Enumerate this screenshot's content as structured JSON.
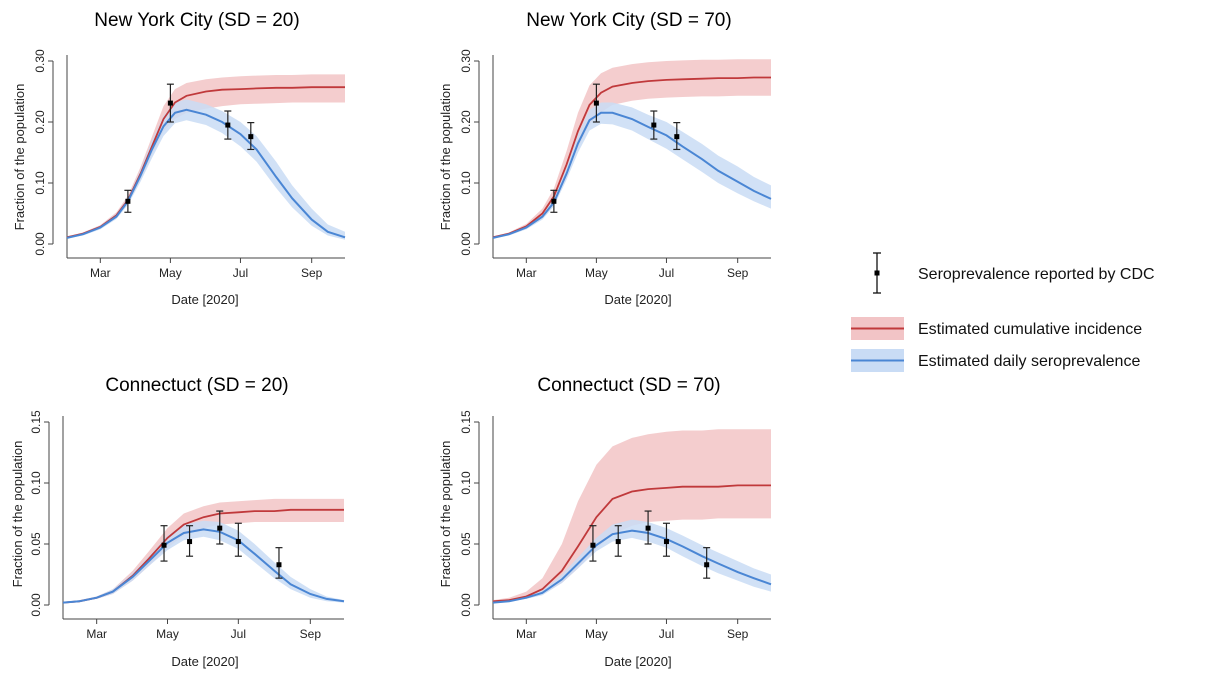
{
  "colors": {
    "cumulative_line": "#c0393b",
    "cumulative_band": "#f2c4c6",
    "daily_line": "#4a86d4",
    "daily_band": "#c9dcf5",
    "observed": "#000000"
  },
  "legend": {
    "observed": "Seroprevalence reported by CDC",
    "cumulative": "Estimated cumulative incidence",
    "daily": "Estimated daily seroprevalence"
  },
  "chart_data": [
    {
      "type": "line",
      "title": "New York City (SD = 20)",
      "xlabel": "Date [2020]",
      "ylabel": "Fraction of the population",
      "x_ticks": [
        "Mar",
        "May",
        "Jul",
        "Sep"
      ],
      "y_ticks": [
        "0.00",
        "0.10",
        "0.20",
        "0.30"
      ],
      "xlim": [
        "2020-02-01",
        "2020-09-30"
      ],
      "ylim": [
        0,
        0.3
      ],
      "observed": [
        {
          "date": "2020-03-25",
          "y": 0.07,
          "lo": 0.052,
          "hi": 0.088
        },
        {
          "date": "2020-05-01",
          "y": 0.231,
          "lo": 0.2,
          "hi": 0.262
        },
        {
          "date": "2020-06-20",
          "y": 0.195,
          "lo": 0.172,
          "hi": 0.218
        },
        {
          "date": "2020-07-10",
          "y": 0.176,
          "lo": 0.155,
          "hi": 0.199
        }
      ],
      "cumulative": {
        "dates": [
          "2020-02-01",
          "2020-02-15",
          "2020-03-01",
          "2020-03-15",
          "2020-03-25",
          "2020-04-05",
          "2020-04-15",
          "2020-04-25",
          "2020-05-05",
          "2020-05-15",
          "2020-06-01",
          "2020-06-15",
          "2020-07-01",
          "2020-07-15",
          "2020-08-01",
          "2020-08-15",
          "2020-09-01",
          "2020-09-15",
          "2020-09-30"
        ],
        "mid": [
          0.011,
          0.017,
          0.028,
          0.047,
          0.072,
          0.115,
          0.16,
          0.205,
          0.232,
          0.243,
          0.25,
          0.253,
          0.254,
          0.255,
          0.256,
          0.256,
          0.257,
          0.257,
          0.257
        ],
        "lo": [
          0.01,
          0.015,
          0.025,
          0.043,
          0.066,
          0.105,
          0.146,
          0.185,
          0.205,
          0.215,
          0.222,
          0.226,
          0.229,
          0.23,
          0.231,
          0.232,
          0.232,
          0.232,
          0.232
        ],
        "hi": [
          0.012,
          0.019,
          0.031,
          0.052,
          0.079,
          0.126,
          0.176,
          0.226,
          0.254,
          0.264,
          0.27,
          0.273,
          0.275,
          0.276,
          0.277,
          0.277,
          0.278,
          0.278,
          0.278
        ]
      },
      "daily": {
        "dates": [
          "2020-02-01",
          "2020-02-15",
          "2020-03-01",
          "2020-03-15",
          "2020-03-25",
          "2020-04-05",
          "2020-04-15",
          "2020-04-25",
          "2020-05-05",
          "2020-05-15",
          "2020-06-01",
          "2020-06-15",
          "2020-07-01",
          "2020-07-15",
          "2020-08-01",
          "2020-08-15",
          "2020-09-01",
          "2020-09-15",
          "2020-09-30"
        ],
        "mid": [
          0.01,
          0.016,
          0.027,
          0.045,
          0.07,
          0.112,
          0.155,
          0.193,
          0.215,
          0.22,
          0.212,
          0.2,
          0.18,
          0.155,
          0.11,
          0.075,
          0.04,
          0.02,
          0.011
        ],
        "lo": [
          0.009,
          0.014,
          0.024,
          0.041,
          0.064,
          0.102,
          0.141,
          0.177,
          0.198,
          0.203,
          0.195,
          0.182,
          0.16,
          0.135,
          0.092,
          0.06,
          0.03,
          0.014,
          0.007
        ],
        "hi": [
          0.011,
          0.018,
          0.03,
          0.05,
          0.076,
          0.122,
          0.17,
          0.21,
          0.232,
          0.237,
          0.229,
          0.218,
          0.2,
          0.177,
          0.135,
          0.096,
          0.058,
          0.032,
          0.02
        ]
      }
    },
    {
      "type": "line",
      "title": "New York City (SD = 70)",
      "xlabel": "Date [2020]",
      "ylabel": "Fraction of the population",
      "x_ticks": [
        "Mar",
        "May",
        "Jul",
        "Sep"
      ],
      "y_ticks": [
        "0.00",
        "0.10",
        "0.20",
        "0.30"
      ],
      "xlim": [
        "2020-02-01",
        "2020-09-30"
      ],
      "ylim": [
        0,
        0.3
      ],
      "observed": [
        {
          "date": "2020-03-25",
          "y": 0.07,
          "lo": 0.052,
          "hi": 0.088
        },
        {
          "date": "2020-05-01",
          "y": 0.231,
          "lo": 0.2,
          "hi": 0.262
        },
        {
          "date": "2020-06-20",
          "y": 0.195,
          "lo": 0.172,
          "hi": 0.218
        },
        {
          "date": "2020-07-10",
          "y": 0.176,
          "lo": 0.155,
          "hi": 0.199
        }
      ],
      "cumulative": {
        "dates": [
          "2020-02-01",
          "2020-02-15",
          "2020-03-01",
          "2020-03-15",
          "2020-03-25",
          "2020-04-05",
          "2020-04-15",
          "2020-04-25",
          "2020-05-05",
          "2020-05-15",
          "2020-06-01",
          "2020-06-15",
          "2020-07-01",
          "2020-07-15",
          "2020-08-01",
          "2020-08-15",
          "2020-09-01",
          "2020-09-15",
          "2020-09-30"
        ],
        "mid": [
          0.011,
          0.017,
          0.029,
          0.05,
          0.078,
          0.13,
          0.185,
          0.228,
          0.248,
          0.258,
          0.264,
          0.267,
          0.269,
          0.27,
          0.271,
          0.272,
          0.272,
          0.273,
          0.273
        ],
        "lo": [
          0.01,
          0.015,
          0.025,
          0.043,
          0.066,
          0.11,
          0.158,
          0.196,
          0.216,
          0.228,
          0.235,
          0.238,
          0.24,
          0.241,
          0.242,
          0.242,
          0.243,
          0.243,
          0.243
        ],
        "hi": [
          0.012,
          0.019,
          0.033,
          0.058,
          0.091,
          0.152,
          0.215,
          0.26,
          0.28,
          0.289,
          0.295,
          0.298,
          0.3,
          0.301,
          0.302,
          0.302,
          0.303,
          0.303,
          0.303
        ]
      },
      "daily": {
        "dates": [
          "2020-02-01",
          "2020-02-15",
          "2020-03-01",
          "2020-03-15",
          "2020-03-25",
          "2020-04-05",
          "2020-04-15",
          "2020-04-25",
          "2020-05-05",
          "2020-05-15",
          "2020-06-01",
          "2020-06-15",
          "2020-07-01",
          "2020-07-15",
          "2020-08-01",
          "2020-08-15",
          "2020-09-01",
          "2020-09-15",
          "2020-09-30"
        ],
        "mid": [
          0.01,
          0.016,
          0.027,
          0.045,
          0.068,
          0.115,
          0.165,
          0.203,
          0.215,
          0.215,
          0.205,
          0.192,
          0.178,
          0.16,
          0.139,
          0.12,
          0.102,
          0.087,
          0.074
        ],
        "lo": [
          0.009,
          0.014,
          0.024,
          0.04,
          0.062,
          0.105,
          0.15,
          0.186,
          0.197,
          0.196,
          0.186,
          0.172,
          0.156,
          0.139,
          0.118,
          0.1,
          0.083,
          0.07,
          0.058
        ],
        "hi": [
          0.011,
          0.018,
          0.03,
          0.05,
          0.075,
          0.125,
          0.18,
          0.22,
          0.232,
          0.232,
          0.224,
          0.212,
          0.2,
          0.184,
          0.164,
          0.145,
          0.127,
          0.11,
          0.096
        ]
      }
    },
    {
      "type": "line",
      "title": "Connectuct (SD = 20)",
      "xlabel": "Date [2020]",
      "ylabel": "Fraction of the population",
      "x_ticks": [
        "Mar",
        "May",
        "Jul",
        "Sep"
      ],
      "y_ticks": [
        "0.00",
        "0.05",
        "0.10",
        "0.15"
      ],
      "xlim": [
        "2020-02-01",
        "2020-09-30"
      ],
      "ylim": [
        0,
        0.15
      ],
      "observed": [
        {
          "date": "2020-04-28",
          "y": 0.049,
          "lo": 0.036,
          "hi": 0.065
        },
        {
          "date": "2020-05-20",
          "y": 0.052,
          "lo": 0.04,
          "hi": 0.065
        },
        {
          "date": "2020-06-15",
          "y": 0.063,
          "lo": 0.05,
          "hi": 0.077
        },
        {
          "date": "2020-07-01",
          "y": 0.052,
          "lo": 0.04,
          "hi": 0.067
        },
        {
          "date": "2020-08-05",
          "y": 0.033,
          "lo": 0.022,
          "hi": 0.047
        }
      ],
      "cumulative": {
        "dates": [
          "2020-02-01",
          "2020-02-15",
          "2020-03-01",
          "2020-03-15",
          "2020-04-01",
          "2020-04-15",
          "2020-05-01",
          "2020-05-15",
          "2020-06-01",
          "2020-06-15",
          "2020-07-01",
          "2020-07-15",
          "2020-08-01",
          "2020-08-15",
          "2020-09-01",
          "2020-09-15",
          "2020-09-30"
        ],
        "mid": [
          0.002,
          0.003,
          0.006,
          0.011,
          0.024,
          0.038,
          0.055,
          0.066,
          0.072,
          0.075,
          0.076,
          0.077,
          0.077,
          0.078,
          0.078,
          0.078,
          0.078
        ],
        "lo": [
          0.002,
          0.003,
          0.005,
          0.009,
          0.02,
          0.032,
          0.047,
          0.057,
          0.063,
          0.066,
          0.067,
          0.068,
          0.068,
          0.068,
          0.068,
          0.068,
          0.068
        ],
        "hi": [
          0.002,
          0.004,
          0.007,
          0.013,
          0.028,
          0.044,
          0.063,
          0.075,
          0.081,
          0.084,
          0.085,
          0.086,
          0.087,
          0.087,
          0.087,
          0.087,
          0.087
        ]
      },
      "daily": {
        "dates": [
          "2020-02-01",
          "2020-02-15",
          "2020-03-01",
          "2020-03-15",
          "2020-04-01",
          "2020-04-15",
          "2020-05-01",
          "2020-05-15",
          "2020-06-01",
          "2020-06-15",
          "2020-07-01",
          "2020-07-15",
          "2020-08-01",
          "2020-08-15",
          "2020-09-01",
          "2020-09-15",
          "2020-09-30"
        ],
        "mid": [
          0.002,
          0.003,
          0.006,
          0.011,
          0.023,
          0.036,
          0.051,
          0.059,
          0.062,
          0.06,
          0.053,
          0.042,
          0.028,
          0.017,
          0.009,
          0.005,
          0.003
        ],
        "lo": [
          0.002,
          0.003,
          0.005,
          0.009,
          0.02,
          0.032,
          0.045,
          0.053,
          0.056,
          0.053,
          0.046,
          0.035,
          0.022,
          0.013,
          0.006,
          0.003,
          0.002
        ],
        "hi": [
          0.002,
          0.004,
          0.007,
          0.013,
          0.026,
          0.04,
          0.057,
          0.066,
          0.069,
          0.068,
          0.061,
          0.05,
          0.035,
          0.023,
          0.013,
          0.007,
          0.004
        ]
      }
    },
    {
      "type": "line",
      "title": "Connectuct (SD = 70)",
      "xlabel": "Date [2020]",
      "ylabel": "Fraction of the population",
      "x_ticks": [
        "Mar",
        "May",
        "Jul",
        "Sep"
      ],
      "y_ticks": [
        "0.00",
        "0.05",
        "0.10",
        "0.15"
      ],
      "xlim": [
        "2020-02-01",
        "2020-09-30"
      ],
      "ylim": [
        0,
        0.15
      ],
      "observed": [
        {
          "date": "2020-04-28",
          "y": 0.049,
          "lo": 0.036,
          "hi": 0.065
        },
        {
          "date": "2020-05-20",
          "y": 0.052,
          "lo": 0.04,
          "hi": 0.065
        },
        {
          "date": "2020-06-15",
          "y": 0.063,
          "lo": 0.05,
          "hi": 0.077
        },
        {
          "date": "2020-07-01",
          "y": 0.052,
          "lo": 0.04,
          "hi": 0.067
        },
        {
          "date": "2020-08-05",
          "y": 0.033,
          "lo": 0.022,
          "hi": 0.047
        }
      ],
      "cumulative": {
        "dates": [
          "2020-02-01",
          "2020-02-15",
          "2020-03-01",
          "2020-03-15",
          "2020-04-01",
          "2020-04-15",
          "2020-05-01",
          "2020-05-15",
          "2020-06-01",
          "2020-06-15",
          "2020-07-01",
          "2020-07-15",
          "2020-08-01",
          "2020-08-15",
          "2020-09-01",
          "2020-09-15",
          "2020-09-30"
        ],
        "mid": [
          0.003,
          0.004,
          0.007,
          0.013,
          0.028,
          0.048,
          0.072,
          0.087,
          0.093,
          0.095,
          0.096,
          0.097,
          0.097,
          0.097,
          0.098,
          0.098,
          0.098
        ],
        "lo": [
          0.002,
          0.003,
          0.005,
          0.009,
          0.018,
          0.03,
          0.046,
          0.058,
          0.065,
          0.068,
          0.069,
          0.07,
          0.07,
          0.071,
          0.071,
          0.071,
          0.071
        ],
        "hi": [
          0.004,
          0.006,
          0.011,
          0.022,
          0.05,
          0.085,
          0.115,
          0.13,
          0.137,
          0.14,
          0.142,
          0.143,
          0.143,
          0.144,
          0.144,
          0.144,
          0.144
        ]
      },
      "daily": {
        "dates": [
          "2020-02-01",
          "2020-02-15",
          "2020-03-01",
          "2020-03-15",
          "2020-04-01",
          "2020-04-15",
          "2020-05-01",
          "2020-05-15",
          "2020-06-01",
          "2020-06-15",
          "2020-07-01",
          "2020-07-15",
          "2020-08-01",
          "2020-08-15",
          "2020-09-01",
          "2020-09-15",
          "2020-09-30"
        ],
        "mid": [
          0.002,
          0.003,
          0.006,
          0.01,
          0.021,
          0.034,
          0.049,
          0.058,
          0.061,
          0.059,
          0.054,
          0.048,
          0.04,
          0.034,
          0.027,
          0.022,
          0.017
        ],
        "lo": [
          0.002,
          0.003,
          0.005,
          0.008,
          0.018,
          0.03,
          0.044,
          0.052,
          0.055,
          0.052,
          0.047,
          0.04,
          0.032,
          0.026,
          0.02,
          0.015,
          0.011
        ],
        "hi": [
          0.002,
          0.004,
          0.007,
          0.012,
          0.025,
          0.039,
          0.055,
          0.066,
          0.07,
          0.068,
          0.063,
          0.057,
          0.049,
          0.043,
          0.036,
          0.03,
          0.025
        ]
      }
    }
  ]
}
